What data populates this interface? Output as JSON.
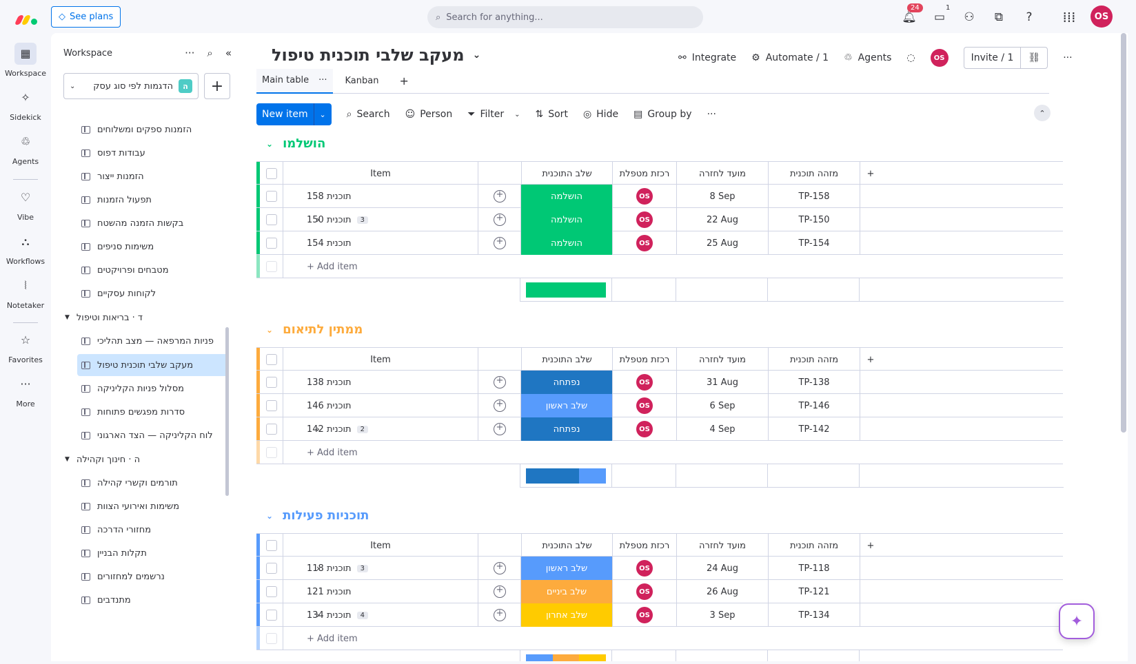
{
  "topbar": {
    "see_plans": "See plans",
    "search_placeholder": "Search for anything...",
    "notifications_count": "24",
    "inbox_count": "1",
    "avatar": "OS"
  },
  "rail": {
    "items": [
      {
        "label": "Workspace",
        "icon": "grid-icon"
      },
      {
        "label": "Sidekick",
        "icon": "sparkle-icon"
      },
      {
        "label": "Agents",
        "icon": "agents-icon"
      },
      {
        "label": "Vibe",
        "icon": "heart-icon"
      },
      {
        "label": "Workflows",
        "icon": "workflows-icon"
      },
      {
        "label": "Notetaker",
        "icon": "waveform-icon"
      },
      {
        "label": "Favorites",
        "icon": "star-icon"
      },
      {
        "label": "More",
        "icon": "dots-icon"
      }
    ]
  },
  "sidebar": {
    "title": "Workspace",
    "workspace_name": "הדגמות לפי סוג עסק",
    "workspace_badge": "ה",
    "items": [
      "הזמנות ספקים ומשלוחים",
      "עבודות דפוס",
      "הזמנות ייצור",
      "תפעול הזמנות",
      "בקשות הזמנה מהשטח",
      "משימות סניפים",
      "מטבחים ופרויקטים",
      "לקוחות עסקיים"
    ],
    "folder_health": "ד · בריאות וטיפול",
    "health_items": [
      "פניות המרפאה — מצב תהליכי",
      "מעקב שלבי תוכנית טיפול",
      "מסלול פניות הקליניקה",
      "סדרות מפגשים פתוחות",
      "לוח הקליניקה — הצד הארגוני"
    ],
    "folder_edu": "ה · חינוך וקהילה",
    "edu_items": [
      "תורמים וקשרי קהילה",
      "משימות ואירועי הצוות",
      "מחזורי הדרכה",
      "תקלות הבניין",
      "נרשמים למחזורים",
      "מתנדבים"
    ]
  },
  "board": {
    "title": "מעקב שלבי תוכנית טיפול",
    "integrate": "Integrate",
    "automate": "Automate / 1",
    "agents": "Agents",
    "invite": "Invite / 1",
    "owner_avatar": "OS",
    "tabs": [
      "Main table",
      "Kanban"
    ],
    "toolbar": {
      "new_item": "New item",
      "search": "Search",
      "person": "Person",
      "filter": "Filter",
      "sort": "Sort",
      "hide": "Hide",
      "group_by": "Group by"
    },
    "columns": {
      "item": "Item",
      "stage": "שלב התוכנית",
      "owner": "רכזת מטפלת",
      "due": "מועד לחזרה",
      "id": "מזהה תוכנית"
    },
    "add_item": "+ Add item",
    "groups": [
      {
        "title": "הושלמו",
        "color": "#00c875",
        "rows": [
          {
            "name": "תוכנית 158",
            "stage": "הושלמה",
            "stage_color": "#00c875",
            "owner": "OS",
            "due": "8 Sep",
            "id": "TP-158",
            "sub": ""
          },
          {
            "name": "תוכנית 150",
            "stage": "הושלמה",
            "stage_color": "#00c875",
            "owner": "OS",
            "due": "22 Aug",
            "id": "TP-150",
            "sub": "3"
          },
          {
            "name": "תוכנית 154",
            "stage": "הושלמה",
            "stage_color": "#00c875",
            "owner": "OS",
            "due": "25 Aug",
            "id": "TP-154",
            "sub": ""
          }
        ]
      },
      {
        "title": "ממתין לתיאום",
        "color": "#fdab3d",
        "rows": [
          {
            "name": "תוכנית 138",
            "stage": "נפתחה",
            "stage_color": "#1f76c2",
            "owner": "OS",
            "due": "31 Aug",
            "id": "TP-138",
            "sub": ""
          },
          {
            "name": "תוכנית 146",
            "stage": "שלב ראשון",
            "stage_color": "#579bfc",
            "owner": "OS",
            "due": "6 Sep",
            "id": "TP-146",
            "sub": ""
          },
          {
            "name": "תוכנית 142",
            "stage": "נפתחה",
            "stage_color": "#1f76c2",
            "owner": "OS",
            "due": "4 Sep",
            "id": "TP-142",
            "sub": "2"
          }
        ]
      },
      {
        "title": "תוכניות פעילות",
        "color": "#579bfc",
        "rows": [
          {
            "name": "תוכנית 118",
            "stage": "שלב ראשון",
            "stage_color": "#579bfc",
            "owner": "OS",
            "due": "24 Aug",
            "id": "TP-118",
            "sub": "3"
          },
          {
            "name": "תוכנית 121",
            "stage": "שלב ביניים",
            "stage_color": "#fdab3d",
            "owner": "OS",
            "due": "26 Aug",
            "id": "TP-121",
            "sub": ""
          },
          {
            "name": "תוכנית 134",
            "stage": "שלב אחרון",
            "stage_color": "#ffcb00",
            "owner": "OS",
            "due": "3 Sep",
            "id": "TP-134",
            "sub": "4"
          }
        ]
      }
    ]
  }
}
